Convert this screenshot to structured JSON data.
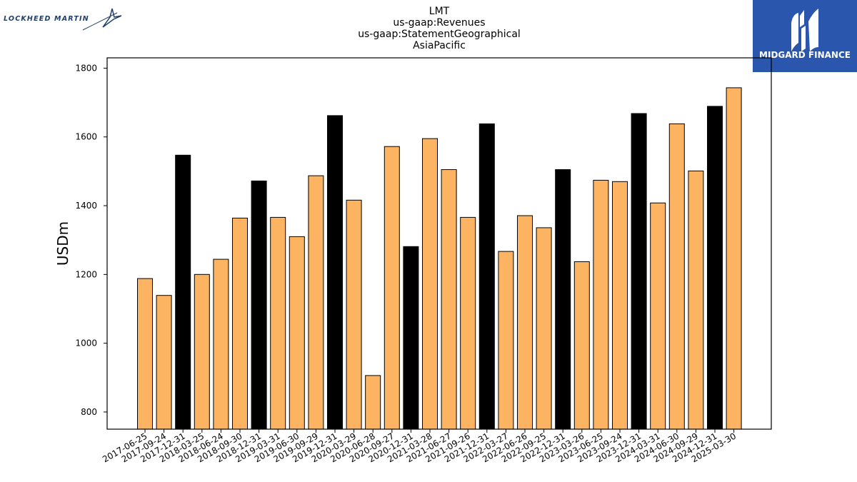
{
  "brands": {
    "left_logo_text": "LOCKHEED MARTIN",
    "right_logo_text": "MIDGARD FINANCE"
  },
  "colors": {
    "bar_regular": "#fdb462",
    "bar_year_end": "#000000",
    "bar_edge": "#000000",
    "right_logo_bg": "#2b56ad"
  },
  "chart_data": {
    "type": "bar",
    "title": [
      "LMT",
      "us-gaap:Revenues",
      "us-gaap:StatementGeographical",
      "AsiaPacific"
    ],
    "ylabel": "USDm",
    "xlabel": "",
    "ylim": [
      750,
      1830
    ],
    "yticks": [
      800,
      1000,
      1200,
      1400,
      1600,
      1800
    ],
    "grid": false,
    "categories": [
      "2017-06-25",
      "2017-09-24",
      "2017-12-31",
      "2018-03-25",
      "2018-06-24",
      "2018-09-30",
      "2018-12-31",
      "2019-03-31",
      "2019-06-30",
      "2019-09-29",
      "2019-12-31",
      "2020-03-29",
      "2020-06-28",
      "2020-09-27",
      "2020-12-31",
      "2021-03-28",
      "2021-06-27",
      "2021-09-26",
      "2021-12-31",
      "2022-03-27",
      "2022-06-26",
      "2022-09-25",
      "2022-12-31",
      "2023-03-26",
      "2023-06-25",
      "2023-09-24",
      "2023-12-31",
      "2024-03-31",
      "2024-06-30",
      "2024-09-29",
      "2024-12-31",
      "2025-03-30"
    ],
    "values": [
      1188,
      1139,
      1547,
      1200,
      1244,
      1364,
      1472,
      1366,
      1310,
      1487,
      1662,
      1416,
      906,
      1572,
      1281,
      1595,
      1505,
      1366,
      1638,
      1267,
      1371,
      1336,
      1505,
      1237,
      1474,
      1470,
      1668,
      1408,
      1638,
      1501,
      1689,
      1743
    ],
    "year_end": [
      false,
      false,
      true,
      false,
      false,
      false,
      true,
      false,
      false,
      false,
      true,
      false,
      false,
      false,
      true,
      false,
      false,
      false,
      true,
      false,
      false,
      false,
      true,
      false,
      false,
      false,
      true,
      false,
      false,
      false,
      true,
      false
    ]
  }
}
